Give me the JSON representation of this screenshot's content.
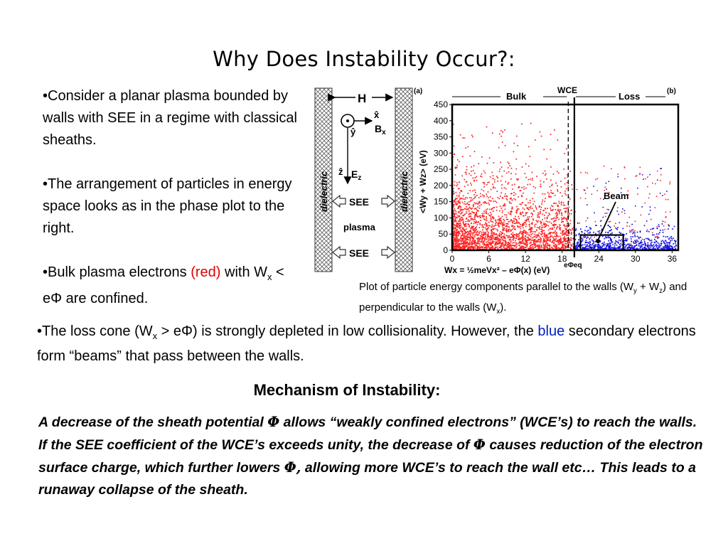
{
  "slide": {
    "title": "Why Does Instability Occur?:",
    "bullet1": "•Consider a planar plasma bounded by walls with SEE in a regime with classical sheaths.",
    "bullet2": "•The arrangement of particles in energy space looks as in the phase plot to the right.",
    "bullet3": {
      "pre": "•Bulk plasma electrons ",
      "red_word": "(red)",
      "mid": " with W",
      "sub_x": "x",
      "post": " < eΦ are confined."
    },
    "caption": {
      "part1": "Plot of particle energy components parallel to the walls (W",
      "sub_y": "y",
      "part2": " + W",
      "sub_z": "z",
      "part3": ") and perpendicular to the walls (W",
      "sub_x": "x",
      "part4": ")."
    },
    "loss_cone": {
      "pre": "•The loss cone (W",
      "sub_x": "x",
      "mid": " > eΦ) is strongly depleted in low collisionality. However, the ",
      "blue_word": "blue",
      "post": " secondary electrons form “beams” that pass between the walls."
    },
    "mechanism_title": "Mechanism of Instability:",
    "mechanism": {
      "t1": "A decrease of the sheath potential ",
      "phi1": "Φ",
      "t2": " allows “weakly confined electrons” (WCE’s) to reach the walls. If the SEE coefficient of the WCE’s exceeds unity, the decrease of ",
      "phi2": "Φ",
      "t3": " causes reduction of the electron surface charge, which further lowers ",
      "phi3": "Φ,",
      "t4": " allowing more WCE’s to reach the wall etc… This leads to a runaway collapse of the sheath."
    }
  },
  "diagram": {
    "panel_label": "(a)",
    "H": "H",
    "x_hat": "x̂",
    "y_hat": "ŷ",
    "B_label": "B",
    "B_sub": "x",
    "z_hat": "ẑ",
    "E_label": "E",
    "E_sub": "z",
    "wall_label": "dielectric",
    "see_top": "SEE",
    "plasma": "plasma",
    "see_bottom": "SEE"
  },
  "chart_data": {
    "type": "scatter",
    "panel_label": "(b)",
    "xlabel": "Wx = ½meVx² – eΦ(x) (eV)",
    "ylabel": "<Wy + Wz> (eV)",
    "xlim": [
      0,
      37
    ],
    "ylim": [
      0,
      450
    ],
    "xticks": [
      0,
      6,
      12,
      18,
      24,
      30,
      36
    ],
    "yticks": [
      0,
      50,
      100,
      150,
      200,
      250,
      300,
      350,
      400,
      450
    ],
    "regions": {
      "bulk": "Bulk",
      "wce": "WCE",
      "loss": "Loss"
    },
    "ephi_eq_label": "eΦeq",
    "ephi_eq_x": 20,
    "wce_boundary_x": 19,
    "beam_label": "Beam",
    "beam_box": {
      "x": [
        21,
        28
      ],
      "y": [
        0,
        47
      ]
    },
    "series": [
      {
        "name": "",
        "color": "#ff2020",
        "description_points": "bulk electrons, dense near origin, x 0-20 eV, y 0-450 eV"
      },
      {
        "name": "",
        "color": "#1010e0",
        "description_points": "secondary electron beams, x 20-37 eV, y 0-100 eV"
      }
    ]
  }
}
